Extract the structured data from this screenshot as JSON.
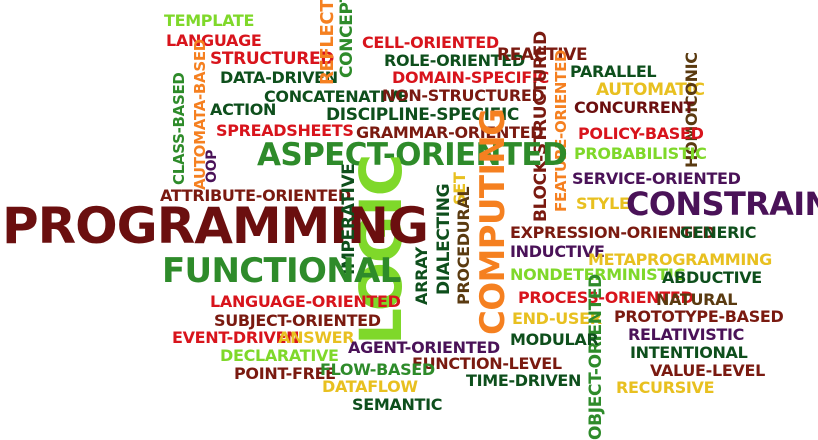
{
  "colors": {
    "dark_red": "#6b0f0f",
    "maroon": "#7a1a10",
    "red": "#d8141c",
    "dark_green": "#0e4f1c",
    "green": "#2e8b2a",
    "lime": "#7fd82a",
    "orange": "#f58020",
    "yellow": "#e8c020",
    "purple": "#4a1258",
    "brown": "#5a3a10",
    "black": "#1a1a1a"
  },
  "words": [
    {
      "text": "TEMPLATE",
      "color": "lime"
    },
    {
      "text": "LANGUAGE",
      "color": "red"
    },
    {
      "text": "STRUCTURED",
      "color": "red"
    },
    {
      "text": "AUTOMATA-BASED",
      "color": "orange"
    },
    {
      "text": "DATA-DRIVEN",
      "color": "dark_green"
    },
    {
      "text": "REFLECTIVE",
      "color": "orange"
    },
    {
      "text": "CONCEPT",
      "color": "green"
    },
    {
      "text": "CELL-ORIENTED",
      "color": "red"
    },
    {
      "text": "ROLE-ORIENTED",
      "color": "dark_green"
    },
    {
      "text": "REACTIVE",
      "color": "maroon"
    },
    {
      "text": "DOMAIN-SPECIFIC",
      "color": "red"
    },
    {
      "text": "PARALLEL",
      "color": "dark_green"
    },
    {
      "text": "AUTOMATIC",
      "color": "yellow"
    },
    {
      "text": "HOMOICONIC",
      "color": "brown"
    },
    {
      "text": "CLASS-BASED",
      "color": "green"
    },
    {
      "text": "ACTION",
      "color": "dark_green"
    },
    {
      "text": "CONCATENATIVE",
      "color": "dark_green"
    },
    {
      "text": "NON-STRUCTURED",
      "color": "maroon"
    },
    {
      "text": "CONCURRENT",
      "color": "dark_red"
    },
    {
      "text": "DISCIPLINE-SPECIFIC",
      "color": "dark_green"
    },
    {
      "text": "SPREADSHEETS",
      "color": "red"
    },
    {
      "text": "GRAMMAR-ORIENTED",
      "color": "maroon"
    },
    {
      "text": "BLOCK-STRUCTURED",
      "color": "maroon"
    },
    {
      "text": "FEATURE-ORIENTED",
      "color": "orange"
    },
    {
      "text": "POLICY-BASED",
      "color": "red"
    },
    {
      "text": "PROBABILISTIC",
      "color": "lime"
    },
    {
      "text": "OOP",
      "color": "purple"
    },
    {
      "text": "ASPECT-ORIENTED",
      "color": "green"
    },
    {
      "text": "SERVICE-ORIENTED",
      "color": "purple"
    },
    {
      "text": "ATTRIBUTE-ORIENTED",
      "color": "maroon"
    },
    {
      "text": "LOGIC",
      "color": "lime"
    },
    {
      "text": "COMPUTING",
      "color": "orange"
    },
    {
      "text": "SET",
      "color": "yellow"
    },
    {
      "text": "STYLE",
      "color": "yellow"
    },
    {
      "text": "CONSTRAINT",
      "color": "purple"
    },
    {
      "text": "PROGRAMMING",
      "color": "dark_red"
    },
    {
      "text": "IMPERATIVE",
      "color": "dark_green"
    },
    {
      "text": "DIALECTING",
      "color": "dark_green"
    },
    {
      "text": "PROCEDURAL",
      "color": "brown"
    },
    {
      "text": "EXPRESSION-ORIENTED",
      "color": "maroon"
    },
    {
      "text": "GENERIC",
      "color": "dark_green"
    },
    {
      "text": "INDUCTIVE",
      "color": "purple"
    },
    {
      "text": "FUNCTIONAL",
      "color": "green"
    },
    {
      "text": "ARRAY",
      "color": "dark_green"
    },
    {
      "text": "METAPROGRAMMING",
      "color": "yellow"
    },
    {
      "text": "NONDETERMINISTIC",
      "color": "lime"
    },
    {
      "text": "ABDUCTIVE",
      "color": "dark_green"
    },
    {
      "text": "PROCESS-ORIENTED",
      "color": "red"
    },
    {
      "text": "NATURAL",
      "color": "brown"
    },
    {
      "text": "LANGUAGE-ORIENTED",
      "color": "red"
    },
    {
      "text": "SUBJECT-ORIENTED",
      "color": "maroon"
    },
    {
      "text": "END-USER",
      "color": "yellow"
    },
    {
      "text": "PROTOTYPE-BASED",
      "color": "maroon"
    },
    {
      "text": "OBJECT-ORIENTED",
      "color": "green"
    },
    {
      "text": "RELATIVISTIC",
      "color": "purple"
    },
    {
      "text": "EVENT-DRIVEN",
      "color": "red"
    },
    {
      "text": "ANSWER",
      "color": "yellow"
    },
    {
      "text": "AGENT-ORIENTED",
      "color": "purple"
    },
    {
      "text": "MODULAR",
      "color": "dark_green"
    },
    {
      "text": "INTENTIONAL",
      "color": "dark_green"
    },
    {
      "text": "DECLARATIVE",
      "color": "lime"
    },
    {
      "text": "FUNCTION-LEVEL",
      "color": "maroon"
    },
    {
      "text": "VALUE-LEVEL",
      "color": "maroon"
    },
    {
      "text": "POINT-FREE",
      "color": "maroon"
    },
    {
      "text": "FLOW-BASED",
      "color": "green"
    },
    {
      "text": "TIME-DRIVEN",
      "color": "dark_green"
    },
    {
      "text": "RECURSIVE",
      "color": "yellow"
    },
    {
      "text": "DATAFLOW",
      "color": "yellow"
    },
    {
      "text": "SEMANTIC",
      "color": "dark_green"
    }
  ]
}
